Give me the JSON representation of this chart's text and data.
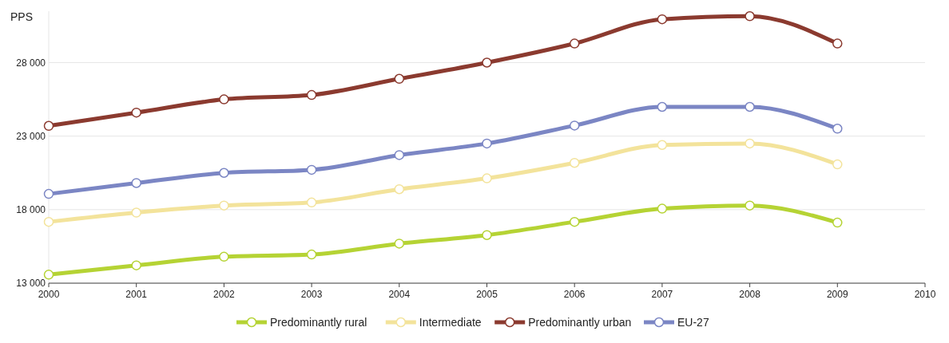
{
  "chart_data": {
    "type": "line",
    "ylabel": "PPS",
    "x": [
      2000,
      2001,
      2002,
      2003,
      2004,
      2005,
      2006,
      2007,
      2008,
      2009
    ],
    "xlim": [
      2000,
      2010
    ],
    "xticks": [
      2000,
      2001,
      2002,
      2003,
      2004,
      2005,
      2006,
      2007,
      2008,
      2009,
      2010
    ],
    "ylim": [
      13000,
      31500
    ],
    "yticks": [
      {
        "value": 13000,
        "label": "13 000"
      },
      {
        "value": 18000,
        "label": "18 000"
      },
      {
        "value": 23000,
        "label": "23 000"
      },
      {
        "value": 28000,
        "label": "28 000"
      }
    ],
    "grid": "y",
    "legend": "bottom",
    "marker": "circle",
    "line_style": "solid",
    "series": [
      {
        "name": "Predominantly rural",
        "color": "#b5d334",
        "values": [
          13580,
          14210,
          14800,
          14950,
          15690,
          16270,
          17170,
          18070,
          18280,
          17120
        ]
      },
      {
        "name": "Intermediate",
        "color": "#f3e39b",
        "values": [
          17170,
          17800,
          18280,
          18490,
          19390,
          20130,
          21180,
          22400,
          22500,
          21080
        ]
      },
      {
        "name": "Predominantly urban",
        "color": "#8b3a2f",
        "values": [
          23700,
          24600,
          25500,
          25800,
          26900,
          28000,
          29300,
          30950,
          31160,
          29300
        ]
      },
      {
        "name": "EU-27",
        "color": "#7b86c4",
        "values": [
          19070,
          19810,
          20500,
          20710,
          21710,
          22500,
          23720,
          24990,
          24990,
          23510
        ]
      }
    ]
  }
}
